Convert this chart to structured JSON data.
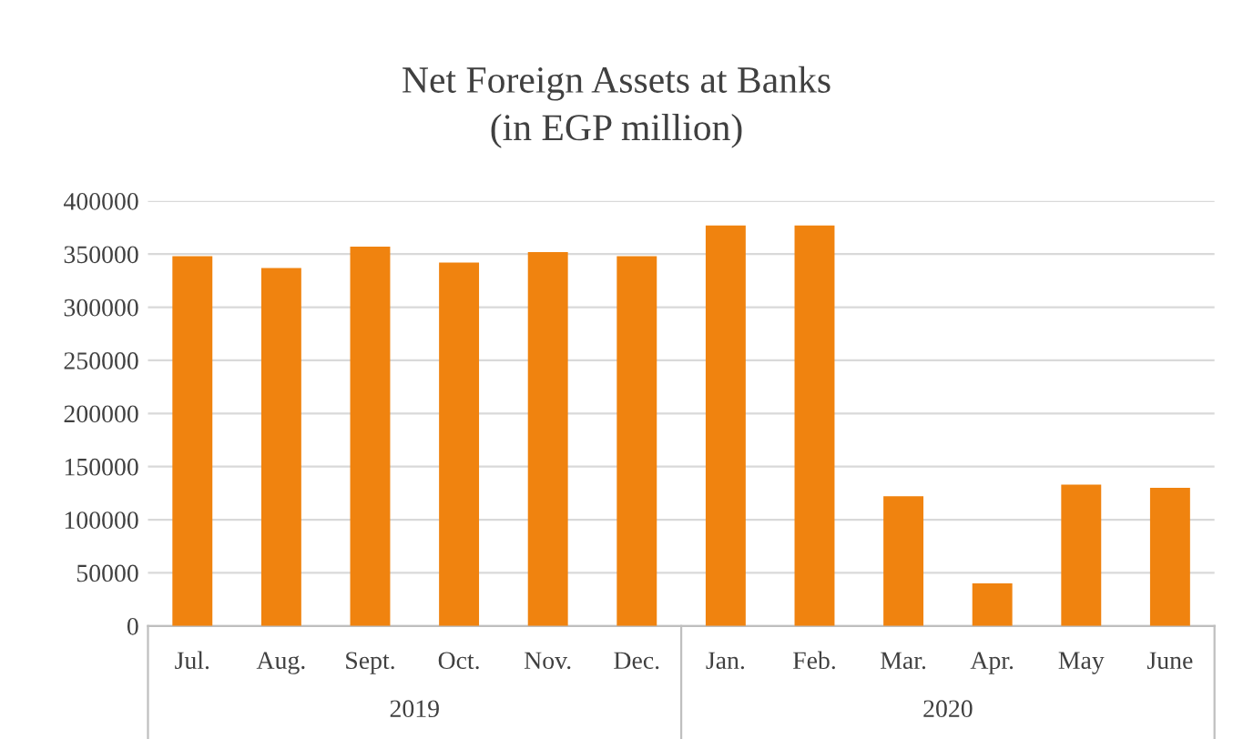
{
  "chart_data": {
    "type": "bar",
    "title": "Net Foreign Assets at Banks\n(in EGP million)",
    "categories": [
      "Jul.",
      "Aug.",
      "Sept.",
      "Oct.",
      "Nov.",
      "Dec.",
      "Jan.",
      "Feb.",
      "Mar.",
      "Apr.",
      "May",
      "June"
    ],
    "values": [
      348000,
      337000,
      357000,
      342000,
      352000,
      348000,
      377000,
      377000,
      122000,
      40000,
      133000,
      130000
    ],
    "color": "#f0830f",
    "ylim": [
      0,
      400000
    ],
    "yticks": [
      0,
      50000,
      100000,
      150000,
      200000,
      250000,
      300000,
      350000,
      400000
    ],
    "grid": "y",
    "annotations": [
      "2019",
      "2020"
    ]
  }
}
